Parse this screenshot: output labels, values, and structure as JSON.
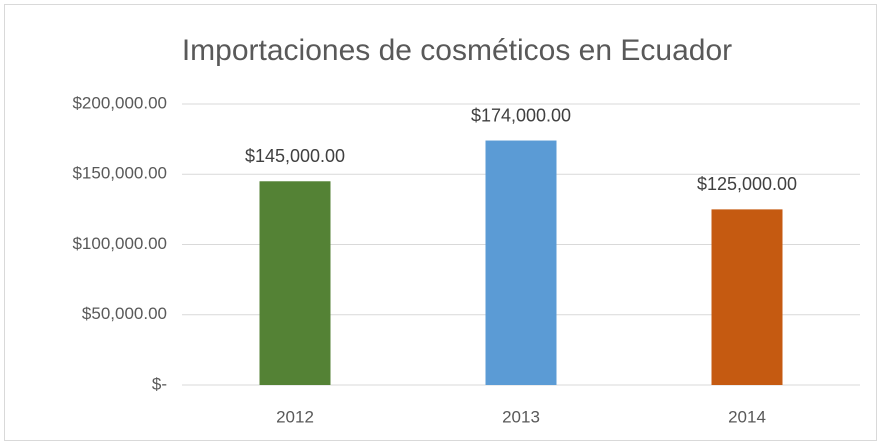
{
  "chart_data": {
    "type": "bar",
    "title": "Importaciones de cosméticos en Ecuador",
    "categories": [
      "2012",
      "2013",
      "2014"
    ],
    "values": [
      145000,
      174000,
      125000
    ],
    "value_labels": [
      "$145,000.00",
      "$174,000.00",
      "$125,000.00"
    ],
    "colors": [
      "#548235",
      "#5b9bd5",
      "#c55a11"
    ],
    "ylim": [
      0,
      200000
    ],
    "yticks": [
      {
        "value": 0,
        "label": "$-"
      },
      {
        "value": 50000,
        "label": "$50,000.00"
      },
      {
        "value": 100000,
        "label": "$100,000.00"
      },
      {
        "value": 150000,
        "label": "$150,000.00"
      },
      {
        "value": 200000,
        "label": "$200,000.00"
      }
    ],
    "grid": true
  }
}
